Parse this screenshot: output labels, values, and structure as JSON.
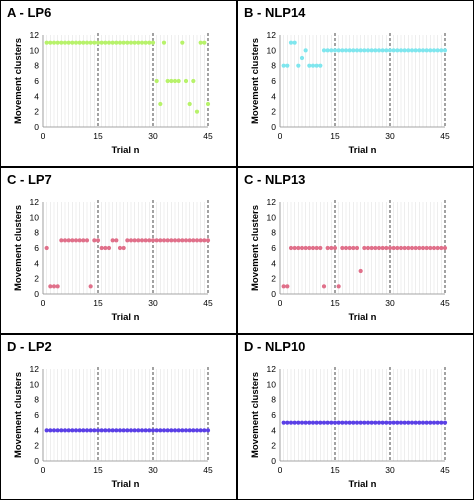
{
  "figure": {
    "background": "#ffffff",
    "border_color": "#000000"
  },
  "chart_data": [
    {
      "panel_label": "A - LP6",
      "type": "scatter",
      "xlabel": "Trial n",
      "ylabel": "Movement clusters",
      "xlim": [
        0,
        45
      ],
      "ylim": [
        0,
        12
      ],
      "xticks": [
        0,
        15,
        30,
        45
      ],
      "yticks": [
        0,
        2,
        4,
        6,
        8,
        10,
        12
      ],
      "dashed_x_lines": [
        15,
        30,
        45
      ],
      "vertical_gridlines_each_trial": true,
      "color": "#b7f26a",
      "values": [
        11,
        11,
        11,
        11,
        11,
        11,
        11,
        11,
        11,
        11,
        11,
        11,
        11,
        11,
        11,
        11,
        11,
        11,
        11,
        11,
        11,
        11,
        11,
        11,
        11,
        11,
        11,
        11,
        11,
        11,
        6,
        3,
        11,
        6,
        6,
        6,
        6,
        11,
        6,
        3,
        6,
        2,
        11,
        11,
        3
      ]
    },
    {
      "panel_label": "B - NLP14",
      "type": "scatter",
      "xlabel": "Trial n",
      "ylabel": "Movement clusters",
      "xlim": [
        0,
        45
      ],
      "ylim": [
        0,
        12
      ],
      "xticks": [
        0,
        15,
        30,
        45
      ],
      "yticks": [
        0,
        2,
        4,
        6,
        8,
        10,
        12
      ],
      "dashed_x_lines": [
        15,
        30,
        45
      ],
      "vertical_gridlines_each_trial": true,
      "color": "#7fe6ee",
      "values": [
        8,
        8,
        11,
        11,
        8,
        9,
        10,
        8,
        8,
        8,
        8,
        10,
        10,
        10,
        10,
        10,
        10,
        10,
        10,
        10,
        10,
        10,
        10,
        10,
        10,
        10,
        10,
        10,
        10,
        10,
        10,
        10,
        10,
        10,
        10,
        10,
        10,
        10,
        10,
        10,
        10,
        10,
        10,
        10,
        10
      ]
    },
    {
      "panel_label": "C - LP7",
      "type": "scatter",
      "xlabel": "Trial n",
      "ylabel": "Movement clusters",
      "xlim": [
        0,
        45
      ],
      "ylim": [
        0,
        12
      ],
      "xticks": [
        0,
        15,
        30,
        45
      ],
      "yticks": [
        0,
        2,
        4,
        6,
        8,
        10,
        12
      ],
      "dashed_x_lines": [
        15,
        30,
        45
      ],
      "vertical_gridlines_each_trial": true,
      "color": "#e0708a",
      "values": [
        6,
        1,
        1,
        1,
        7,
        7,
        7,
        7,
        7,
        7,
        7,
        7,
        1,
        7,
        7,
        6,
        6,
        6,
        7,
        7,
        6,
        6,
        7,
        7,
        7,
        7,
        7,
        7,
        7,
        7,
        7,
        7,
        7,
        7,
        7,
        7,
        7,
        7,
        7,
        7,
        7,
        7,
        7,
        7,
        7
      ]
    },
    {
      "panel_label": "C - NLP13",
      "type": "scatter",
      "xlabel": "Trial n",
      "ylabel": "Movement clusters",
      "xlim": [
        0,
        45
      ],
      "ylim": [
        0,
        12
      ],
      "xticks": [
        0,
        15,
        30,
        45
      ],
      "yticks": [
        0,
        2,
        4,
        6,
        8,
        10,
        12
      ],
      "dashed_x_lines": [
        15,
        30,
        45
      ],
      "vertical_gridlines_each_trial": true,
      "color": "#e0708a",
      "values": [
        1,
        1,
        6,
        6,
        6,
        6,
        6,
        6,
        6,
        6,
        6,
        1,
        6,
        6,
        6,
        1,
        6,
        6,
        6,
        6,
        6,
        3,
        6,
        6,
        6,
        6,
        6,
        6,
        6,
        6,
        6,
        6,
        6,
        6,
        6,
        6,
        6,
        6,
        6,
        6,
        6,
        6,
        6,
        6,
        6
      ]
    },
    {
      "panel_label": "D - LP2",
      "type": "scatter",
      "xlabel": "Trial n",
      "ylabel": "Movement clusters",
      "xlim": [
        0,
        45
      ],
      "ylim": [
        0,
        12
      ],
      "xticks": [
        0,
        15,
        30,
        45
      ],
      "yticks": [
        0,
        2,
        4,
        6,
        8,
        10,
        12
      ],
      "dashed_x_lines": [
        15,
        30,
        45
      ],
      "vertical_gridlines_each_trial": true,
      "color": "#5a3fe6",
      "values": [
        4,
        4,
        4,
        4,
        4,
        4,
        4,
        4,
        4,
        4,
        4,
        4,
        4,
        4,
        4,
        4,
        4,
        4,
        4,
        4,
        4,
        4,
        4,
        4,
        4,
        4,
        4,
        4,
        4,
        4,
        4,
        4,
        4,
        4,
        4,
        4,
        4,
        4,
        4,
        4,
        4,
        4,
        4,
        4,
        4
      ]
    },
    {
      "panel_label": "D - NLP10",
      "type": "scatter",
      "xlabel": "Trial n",
      "ylabel": "Movement clusters",
      "xlim": [
        0,
        45
      ],
      "ylim": [
        0,
        12
      ],
      "xticks": [
        0,
        15,
        30,
        45
      ],
      "yticks": [
        0,
        2,
        4,
        6,
        8,
        10,
        12
      ],
      "dashed_x_lines": [
        15,
        30,
        45
      ],
      "vertical_gridlines_each_trial": true,
      "color": "#5a3fe6",
      "values": [
        5,
        5,
        5,
        5,
        5,
        5,
        5,
        5,
        5,
        5,
        5,
        5,
        5,
        5,
        5,
        5,
        5,
        5,
        5,
        5,
        5,
        5,
        5,
        5,
        5,
        5,
        5,
        5,
        5,
        5,
        5,
        5,
        5,
        5,
        5,
        5,
        5,
        5,
        5,
        5,
        5,
        5,
        5,
        5,
        5
      ]
    }
  ]
}
